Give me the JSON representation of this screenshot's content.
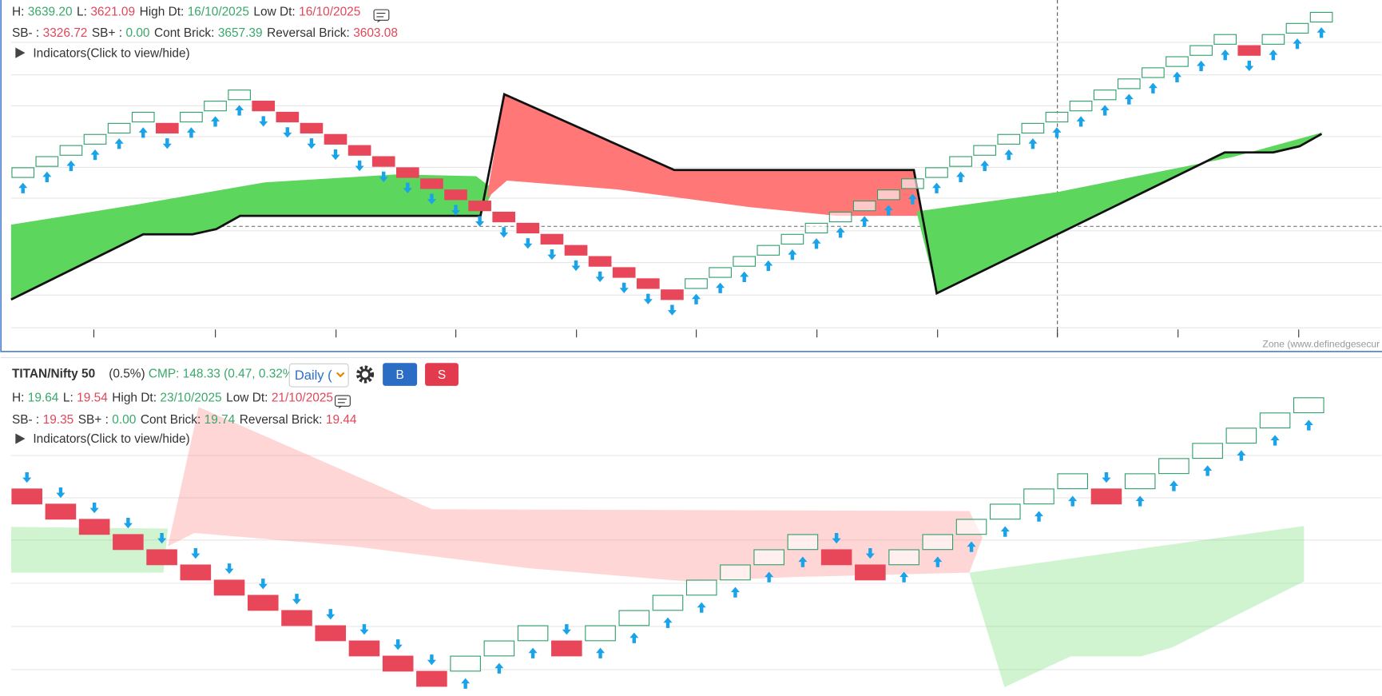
{
  "top_panel": {
    "line1": [
      {
        "label": "H:",
        "value": "3639.20",
        "color": "#3aa86b"
      },
      {
        "label": "L:",
        "value": "3621.09",
        "color": "#e0475a"
      },
      {
        "label": "High Dt:",
        "value": "16/10/2025",
        "color": "#3aa86b"
      },
      {
        "label": "Low Dt:",
        "value": "16/10/2025",
        "color": "#e0475a"
      }
    ],
    "line2": [
      {
        "label": "SB- :",
        "value": "3326.72",
        "color": "#e0475a"
      },
      {
        "label": "SB+ :",
        "value": "0.00",
        "color": "#3aa86b"
      },
      {
        "label": "Cont Brick:",
        "value": "3657.39",
        "color": "#3aa86b"
      },
      {
        "label": "Reversal Brick:",
        "value": "3603.08",
        "color": "#e0475a"
      }
    ],
    "indicators": "Indicators(Click to view/hide)",
    "watermark": "Zone (www.definedgesecur"
  },
  "bottom_panel": {
    "symbol": "TITAN/Nifty 50",
    "change": "(0.5%)",
    "cmp": "CMP: 148.33 (0.47, 0.32%)",
    "interval": "Daily (",
    "buy": "B",
    "sell": "S",
    "line1": [
      {
        "label": "H:",
        "value": "19.64",
        "color": "#3aa86b"
      },
      {
        "label": "L:",
        "value": "19.54",
        "color": "#e0475a"
      },
      {
        "label": "High Dt:",
        "value": "23/10/2025",
        "color": "#3aa86b"
      },
      {
        "label": "Low Dt:",
        "value": "21/10/2025",
        "color": "#e0475a"
      }
    ],
    "line2": [
      {
        "label": "SB- :",
        "value": "19.35",
        "color": "#e0475a"
      },
      {
        "label": "SB+ :",
        "value": "0.00",
        "color": "#3aa86b"
      },
      {
        "label": "Cont Brick:",
        "value": "19.74",
        "color": "#3aa86b"
      },
      {
        "label": "Reversal Brick:",
        "value": "19.44",
        "color": "#e0475a"
      }
    ],
    "indicators": "Indicators(Click to view/hide)"
  }
}
